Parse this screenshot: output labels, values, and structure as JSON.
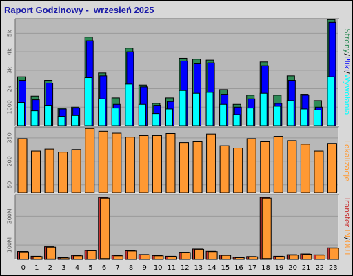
{
  "title": "Raport Godzinowy -  wrzesień 2025",
  "colors": {
    "background": "#d8d8d8",
    "panel": "#b8b8b8",
    "strony": "#2e8b57",
    "pliki": "#0000ff",
    "wywolania": "#00ffff",
    "transfer_total": "#ff9933",
    "transfer_in": "#ff9933",
    "transfer_out": "#c83232"
  },
  "chart_data": [
    {
      "type": "bar",
      "title": "Raport Godzinowy -  wrzesień 2025",
      "categories": [
        "0",
        "1",
        "2",
        "3",
        "4",
        "5",
        "6",
        "7",
        "8",
        "9",
        "10",
        "11",
        "12",
        "13",
        "14",
        "15",
        "16",
        "17",
        "18",
        "19",
        "20",
        "21",
        "22",
        "23"
      ],
      "ylim": [
        0,
        5800
      ],
      "yticks": [
        "1000",
        "2k",
        "3k",
        "4k",
        "5k"
      ],
      "legend": {
        "labels": [
          "Strony",
          "Pliki",
          "Wywołania"
        ],
        "separator": "/",
        "placement": "right"
      },
      "series": [
        {
          "name": "Strony",
          "values": [
            2650,
            1600,
            2450,
            950,
            1000,
            4800,
            2850,
            1500,
            4200,
            2200,
            1200,
            1500,
            3650,
            3600,
            3550,
            1950,
            1150,
            1650,
            3450,
            1650,
            2700,
            1700,
            1350,
            5750
          ]
        },
        {
          "name": "Pliki",
          "values": [
            2450,
            1400,
            2300,
            900,
            950,
            4600,
            2700,
            1150,
            4000,
            2100,
            1100,
            1300,
            3500,
            3350,
            3400,
            1700,
            1000,
            1450,
            3250,
            1200,
            2450,
            1650,
            1000,
            5600
          ]
        },
        {
          "name": "Wywołania",
          "values": [
            1250,
            800,
            1100,
            500,
            550,
            2600,
            1450,
            950,
            2250,
            1150,
            650,
            900,
            1900,
            1750,
            1800,
            1150,
            600,
            950,
            1750,
            1050,
            1350,
            900,
            850,
            2650
          ]
        }
      ]
    },
    {
      "type": "bar",
      "categories": [
        "0",
        "1",
        "2",
        "3",
        "4",
        "5",
        "6",
        "7",
        "8",
        "9",
        "10",
        "11",
        "12",
        "13",
        "14",
        "15",
        "16",
        "17",
        "18",
        "19",
        "20",
        "21",
        "22",
        "23"
      ],
      "ylim": [
        0,
        420
      ],
      "yticks": [
        "50",
        "200",
        "350"
      ],
      "legend": {
        "labels": [
          "Lokalizacje"
        ],
        "placement": "right"
      },
      "series": [
        {
          "name": "Lokalizacje",
          "values": [
            345,
            265,
            278,
            258,
            275,
            410,
            392,
            380,
            355,
            365,
            365,
            378,
            320,
            325,
            375,
            300,
            285,
            345,
            325,
            360,
            332,
            310,
            265,
            315
          ]
        }
      ]
    },
    {
      "type": "bar",
      "categories": [
        "0",
        "1",
        "2",
        "3",
        "4",
        "5",
        "6",
        "7",
        "8",
        "9",
        "10",
        "11",
        "12",
        "13",
        "14",
        "15",
        "16",
        "17",
        "18",
        "19",
        "20",
        "21",
        "22",
        "23"
      ],
      "ylim": [
        0,
        450
      ],
      "yticks": [
        "100M",
        "300M"
      ],
      "legend": {
        "labels": [
          "Transfer",
          "IN",
          "OUT"
        ],
        "separator": "/",
        "placement": "right"
      },
      "series": [
        {
          "name": "Transfer",
          "values": [
            55,
            22,
            88,
            12,
            28,
            62,
            430,
            28,
            60,
            34,
            27,
            22,
            50,
            72,
            56,
            30,
            15,
            20,
            430,
            22,
            33,
            38,
            32,
            80
          ]
        },
        {
          "name": "IN",
          "values": [
            52,
            20,
            85,
            10,
            25,
            60,
            425,
            25,
            58,
            32,
            25,
            20,
            48,
            70,
            54,
            28,
            12,
            18,
            425,
            20,
            30,
            36,
            30,
            78
          ]
        },
        {
          "name": "OUT",
          "values": [
            2,
            1,
            3,
            1,
            2,
            2,
            6,
            2,
            2,
            1,
            1,
            1,
            2,
            2,
            2,
            1,
            1,
            1,
            6,
            1,
            2,
            1,
            1,
            2
          ]
        }
      ]
    }
  ]
}
